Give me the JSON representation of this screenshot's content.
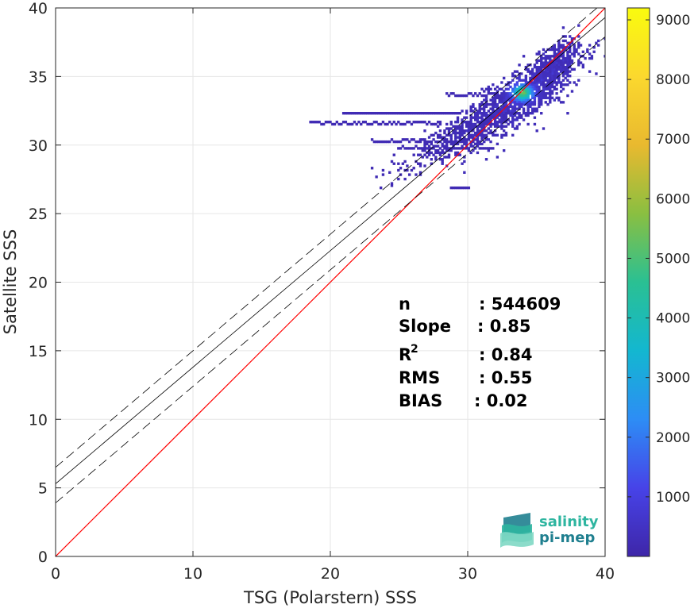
{
  "chart_data": {
    "type": "heatmap",
    "xlabel": "TSG (Polarstern) SSS",
    "ylabel": "Satellite SSS",
    "xlim": [
      0,
      40
    ],
    "ylim": [
      0,
      40
    ],
    "x_ticks": [
      "0",
      "10",
      "20",
      "30",
      "40"
    ],
    "y_ticks": [
      "0",
      "5",
      "10",
      "15",
      "20",
      "25",
      "30",
      "35",
      "40"
    ],
    "grid": true,
    "stats": {
      "n_label": "n",
      "n_value": ": 544609",
      "slope_label": "Slope",
      "slope_value": ": 0.85",
      "r2_label": "R",
      "r2_sup": "2",
      "r2_value": ": 0.84",
      "rms_label": "RMS",
      "rms_value": ": 0.55",
      "bias_label": "BIAS",
      "bias_value": ": 0.02"
    },
    "lines": {
      "identity": {
        "color": "#ff0000",
        "from": [
          0,
          0
        ],
        "to": [
          40,
          40
        ]
      },
      "fit": {
        "color": "#000000",
        "intercept": 5.3,
        "slope": 0.85
      },
      "fit_upper": {
        "color": "#000000",
        "style": "dashed",
        "intercept": 6.5,
        "slope": 0.85
      },
      "fit_lower": {
        "color": "#000000",
        "style": "dashed",
        "intercept": 3.9,
        "slope": 0.85
      }
    },
    "density_clusters": [
      {
        "x": 34.0,
        "y": 33.5,
        "sx": 2.2,
        "sy": 1.4,
        "weight": 1.0,
        "count": 900
      },
      {
        "x": 36.0,
        "y": 35.8,
        "sx": 1.0,
        "sy": 0.9,
        "weight": 0.8,
        "count": 350
      },
      {
        "x": 31.5,
        "y": 32.0,
        "sx": 2.0,
        "sy": 0.9,
        "weight": 0.4,
        "count": 400
      },
      {
        "x": 29.0,
        "y": 30.5,
        "sx": 2.5,
        "sy": 0.8,
        "weight": 0.25,
        "count": 250
      }
    ],
    "density_streaks": [
      {
        "x0": 18.5,
        "x1": 28.0,
        "y": 31.6
      },
      {
        "x0": 21.0,
        "x1": 29.5,
        "y": 32.3
      },
      {
        "x0": 23.0,
        "x1": 30.0,
        "y": 30.3
      },
      {
        "x0": 25.0,
        "x1": 32.0,
        "y": 29.8
      },
      {
        "x0": 28.5,
        "x1": 33.0,
        "y": 33.7
      },
      {
        "x0": 28.8,
        "x1": 30.2,
        "y": 26.9
      }
    ],
    "density_peak": {
      "x": 34.0,
      "y": 33.8
    },
    "colorbar": {
      "ticks": [
        "1000",
        "2000",
        "3000",
        "4000",
        "5000",
        "6000",
        "7000",
        "8000",
        "9000"
      ],
      "tick_values": [
        1000,
        2000,
        3000,
        4000,
        5000,
        6000,
        7000,
        8000,
        9000
      ],
      "min": 0,
      "max": 9200,
      "colormap": "parula",
      "colors": [
        "#3e26a8",
        "#4743e8",
        "#2d8df5",
        "#13b7d0",
        "#2ac093",
        "#8abf41",
        "#e9b92f",
        "#fbd82e",
        "#f9fb0e"
      ]
    }
  },
  "logo": {
    "line1": "salinity",
    "line2": "pi-mep"
  }
}
